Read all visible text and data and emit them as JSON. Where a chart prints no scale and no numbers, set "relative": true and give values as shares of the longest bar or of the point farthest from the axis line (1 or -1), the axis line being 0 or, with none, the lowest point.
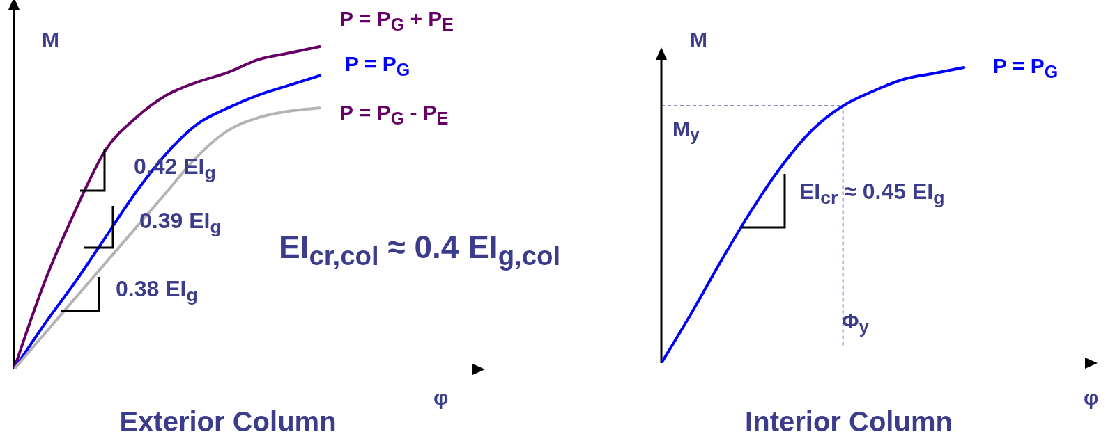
{
  "chart_data": [
    {
      "type": "line",
      "title": "Exterior Column",
      "xlabel": "φ",
      "ylabel": "M",
      "relative": true,
      "legend": false,
      "categories": [
        null,
        null,
        null,
        null,
        null,
        null,
        null,
        null,
        null,
        null,
        null,
        null,
        null,
        null,
        null,
        null
      ],
      "series": [
        {
          "name": "P = P$_{G}$ + P$_{E}$",
          "color": "#660066",
          "values": [
            0,
            0.27,
            0.49,
            0.68,
            0.78,
            0.85,
            0.89,
            0.92,
            0.96,
            0.98,
            1,
            null,
            null,
            null,
            null,
            null
          ]
        },
        {
          "name": "P = P$_{G}$",
          "color": "#0000ff",
          "values": [
            0,
            0.14,
            0.27,
            0.41,
            0.55,
            0.67,
            0.76,
            0.81,
            0.85,
            0.88,
            0.91,
            null,
            null,
            null,
            null,
            null
          ]
        },
        {
          "name": "P = P$_{G}$ - P$_{E}$",
          "color": "#b4b4b4",
          "values": [
            0,
            0.11,
            0.22,
            0.33,
            0.44,
            0.55,
            0.66,
            0.74,
            0.78,
            0.8,
            0.81,
            null,
            null,
            null,
            null,
            null
          ]
        }
      ],
      "annotations": [
        "0.42 EI$_{g}$",
        "0.39 EI$_{g}$",
        "0.38 EI$_{g}$",
        "EI$_{cr,col}$ ≈ 0.4 EI$_{g,col}$"
      ]
    },
    {
      "type": "line",
      "title": "Interior Column",
      "xlabel": "φ",
      "ylabel": "M",
      "relative": true,
      "legend": false,
      "categories": [
        null,
        null,
        null,
        null,
        null,
        null,
        null,
        null,
        null,
        null,
        null,
        null,
        null,
        null,
        null
      ],
      "series": [
        {
          "name": "P = P$_{G}$",
          "color": "#0000ff",
          "values": [
            0,
            0.17,
            0.35,
            0.52,
            0.67,
            0.79,
            0.87,
            0.92,
            0.96,
            0.98,
            1,
            null,
            null,
            null,
            null
          ]
        }
      ],
      "ref_lines": [
        {
          "axis": "y",
          "value": 0.87,
          "label": "M$_{y}$",
          "color": "#1a1a99",
          "line_style": "dashed"
        }
      ],
      "annotations": [
        "EI$_{cr}$ ≈ 0.45 EI$_{g}$",
        "Φ$_{y}$"
      ]
    }
  ]
}
